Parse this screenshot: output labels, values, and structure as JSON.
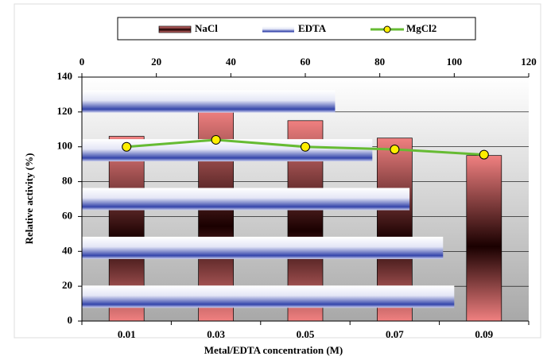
{
  "chart_data": {
    "type": "bar",
    "x_label": "Metal/EDTA concentration (M)",
    "y_label": "Relative activity (%)",
    "categories": [
      "0.01",
      "0.03",
      "0.05",
      "0.07",
      "0.09"
    ],
    "series": [
      {
        "name": "NaCl",
        "type": "bar",
        "color": "#f08080",
        "values": [
          106,
          121,
          115,
          105,
          95
        ]
      },
      {
        "name": "EDTA",
        "type": "barh",
        "axis": "x2",
        "color": "#3344aa",
        "values": [
          100,
          97,
          88,
          78,
          68
        ]
      },
      {
        "name": "MgCl2",
        "type": "line",
        "color": "#66bb33",
        "values": [
          100,
          104,
          100,
          98.5,
          95.5
        ]
      }
    ],
    "ylim": [
      0,
      140
    ],
    "yticks": [
      0,
      20,
      40,
      60,
      80,
      100,
      120,
      140
    ],
    "x2lim": [
      0,
      120
    ],
    "x2ticks": [
      0,
      20,
      40,
      60,
      80,
      100,
      120
    ],
    "grid": true
  }
}
